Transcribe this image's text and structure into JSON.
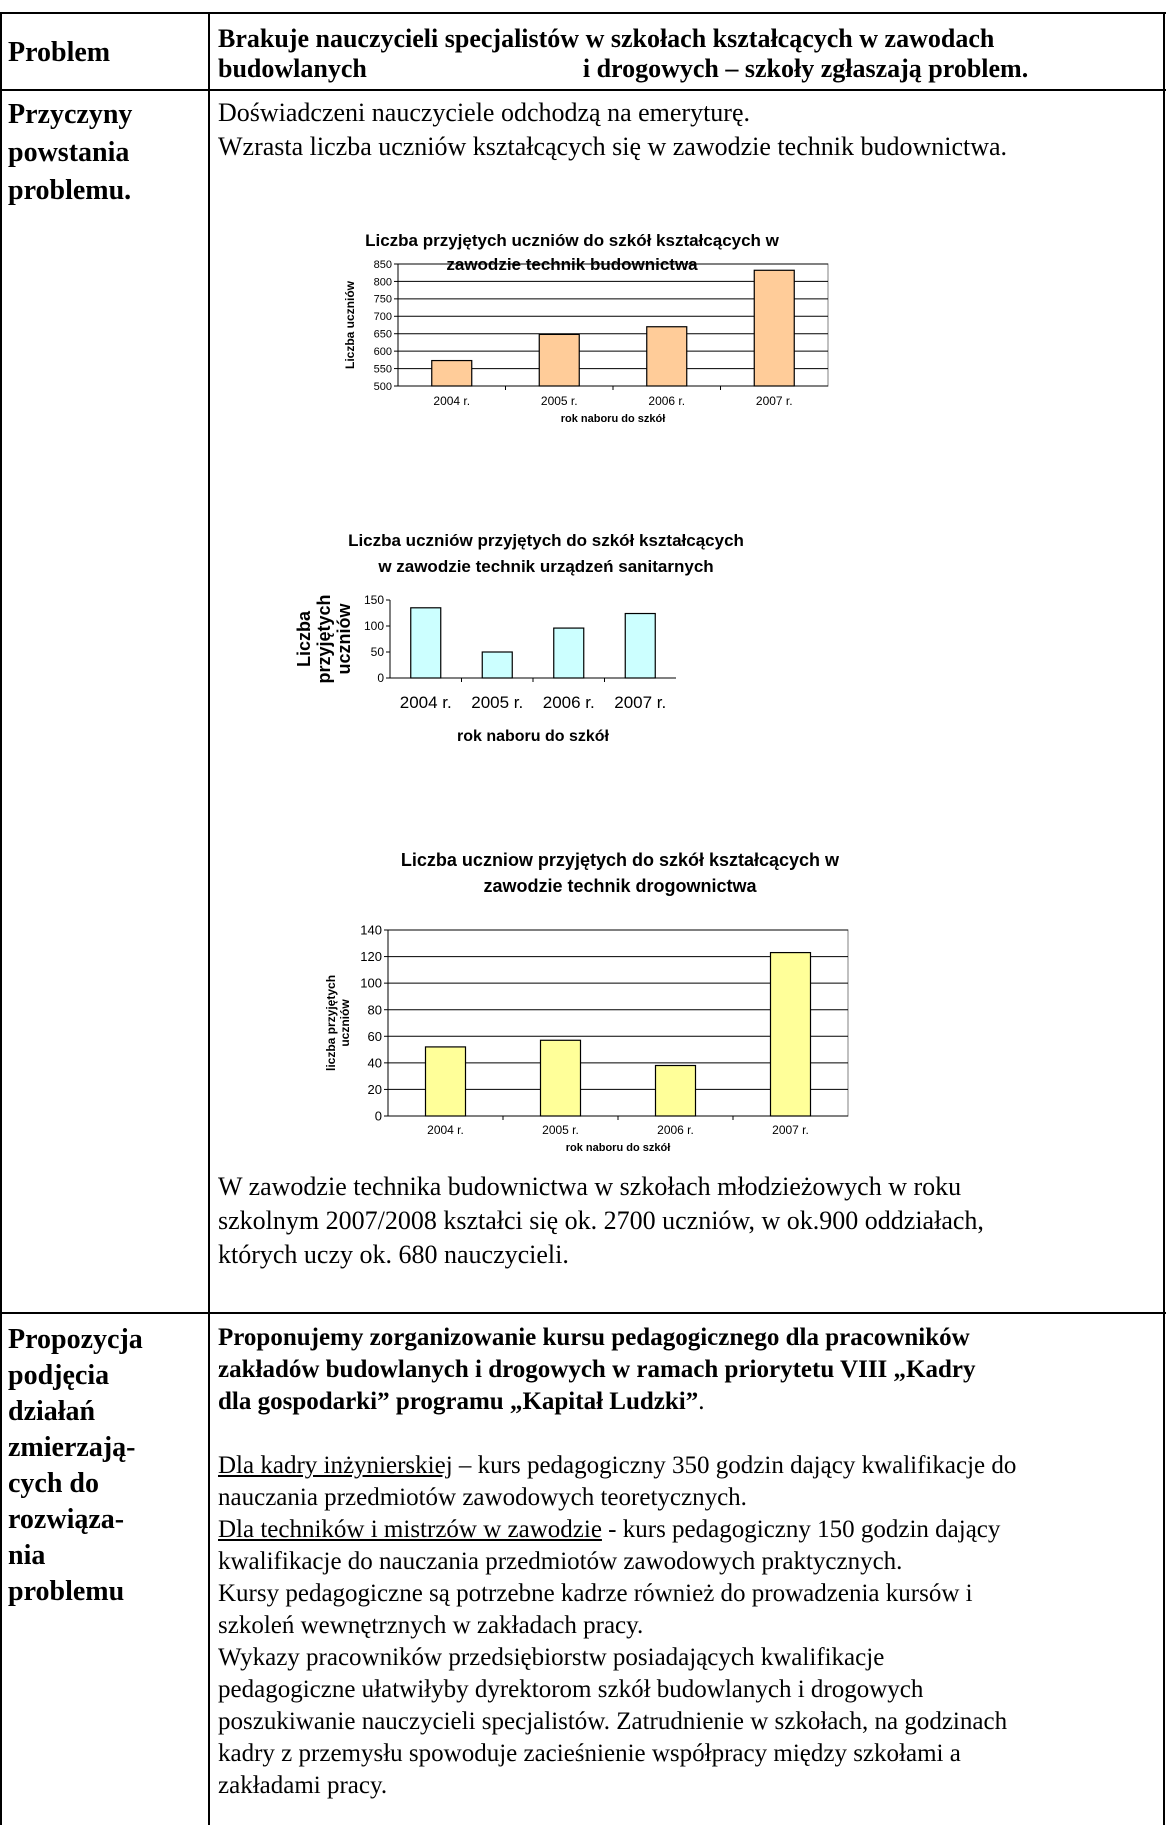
{
  "row1": {
    "label": "Problem",
    "text_line1": "Brakuje nauczycieli specjalistów w szkołach kształcących w zawodach",
    "text_line2a": "budowlanych",
    "text_line2b": "i drogowych – szkoły zgłaszają problem."
  },
  "row2": {
    "label_lines": [
      "Przyczyny",
      "powstania",
      "problemu."
    ],
    "intro_lines": [
      "Doświadczeni nauczyciele odchodzą na emeryturę.",
      "Wzrasta liczba uczniów kształcących się w zawodzie technik budownictwa."
    ],
    "summary_lines": [
      "W zawodzie technika budownictwa w szkołach młodzieżowych w roku",
      "szkolnym 2007/2008 kształci się ok. 2700 uczniów, w ok.900 oddziałach,",
      "których uczy ok. 680 nauczycieli."
    ]
  },
  "row3": {
    "label_lines": [
      "Propozycja",
      "podjęcia",
      "działań",
      "zmierzają-",
      "cych do",
      "rozwiąza-",
      "nia",
      "problemu"
    ],
    "bold_lines": [
      "Proponujemy zorganizowanie kursu pedagogicznego dla pracowników",
      "zakładów budowlanych i drogowych w ramach priorytetu VIII  „Kadry"
    ],
    "bold_line3_a": "dla gospodarki” programu „Kapitał Ludzki”",
    "bold_line3_b": ".",
    "p1_u": "Dla kadry inżynierskiej",
    "p1_rest": " – kurs pedagogiczny 350 godzin dający kwalifikacje do",
    "p1_line2": "nauczania przedmiotów zawodowych teoretycznych.",
    "p2_u": "Dla techników i mistrzów w zawodzie",
    "p2_rest": " - kurs pedagogiczny 150 godzin dający",
    "p2_line2": "kwalifikacje do nauczania przedmiotów zawodowych praktycznych.",
    "p3_lines": [
      "Kursy pedagogiczne są potrzebne kadrze również do prowadzenia kursów  i",
      "szkoleń wewnętrznych w zakładach pracy."
    ],
    "p4_lines": [
      "Wykazy pracowników przedsiębiorstw posiadających kwalifikacje",
      "pedagogiczne ułatwiłyby dyrektorom szkół budowlanych i drogowych",
      "poszukiwanie nauczycieli specjalistów. Zatrudnienie w szkołach, na godzinach",
      "kadry z przemysłu spowoduje zacieśnienie współpracy między szkołami a",
      "zakładami pracy."
    ]
  },
  "colors": {
    "bar1": "#FFCC99",
    "bar2": "#CCFFFF",
    "bar3": "#FFFF99",
    "line": "#000000"
  },
  "chart_data": [
    {
      "type": "bar",
      "title_lines": [
        "Liczba przyjętych uczniów do szkół kształcących w",
        "zawodzie technik budownictwa"
      ],
      "categories": [
        "2004 r.",
        "2005 r.",
        "2006 r.",
        "2007 r."
      ],
      "values": [
        573,
        648,
        670,
        832
      ],
      "xlabel": "rok naboru do szkół",
      "ylabel": "Liczba uczniów",
      "ylim": [
        500,
        850
      ],
      "ytick_step": 50,
      "grid": true
    },
    {
      "type": "bar",
      "title_lines": [
        "Liczba uczniów przyjętych do szkół kształcących",
        "w zawodzie technik urządzeń sanitarnych"
      ],
      "categories": [
        "2004 r.",
        "2005 r.",
        "2006 r.",
        "2007 r."
      ],
      "values": [
        135,
        50,
        96,
        124
      ],
      "xlabel": "rok naboru do szkół",
      "ylabel_lines": [
        "Liczba",
        "przyjętych",
        "uczniów"
      ],
      "ylim": [
        0,
        150
      ],
      "ytick_step": 50,
      "grid": false
    },
    {
      "type": "bar",
      "title_lines": [
        "Liczba uczniow przyjętych do szkół kształcących w",
        "zawodzie technik drogownictwa"
      ],
      "categories": [
        "2004 r.",
        "2005 r.",
        "2006 r.",
        "2007 r."
      ],
      "values": [
        52,
        57,
        38,
        123
      ],
      "xlabel": "rok naboru do szkół",
      "ylabel_lines": [
        "liczba przyjętych",
        "uczniów"
      ],
      "ylim": [
        0,
        140
      ],
      "ytick_step": 20,
      "grid": true
    }
  ]
}
